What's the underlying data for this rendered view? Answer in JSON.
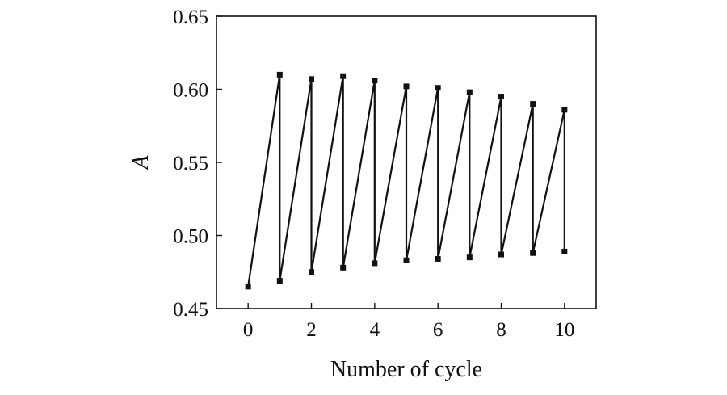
{
  "chart_data": {
    "type": "line",
    "title": "",
    "xlabel": "Number of cycle",
    "ylabel": "A",
    "xlim": [
      -1,
      11
    ],
    "ylim": [
      0.45,
      0.65
    ],
    "xticks": [
      0,
      2,
      4,
      6,
      8,
      10
    ],
    "xtick_labels": [
      "0",
      "2",
      "4",
      "6",
      "8",
      "10"
    ],
    "yticks": [
      0.45,
      0.5,
      0.55,
      0.6,
      0.65
    ],
    "ytick_labels": [
      "0.45",
      "0.50",
      "0.55",
      "0.60",
      "0.65"
    ],
    "grid": false,
    "legend": "none",
    "line_color": "#111111",
    "marker": "square",
    "series": [
      {
        "points": [
          [
            0,
            0.465
          ],
          [
            1,
            0.61
          ],
          [
            1,
            0.469
          ],
          [
            2,
            0.607
          ],
          [
            2,
            0.475
          ],
          [
            3,
            0.609
          ],
          [
            3,
            0.478
          ],
          [
            4,
            0.606
          ],
          [
            4,
            0.481
          ],
          [
            5,
            0.602
          ],
          [
            5,
            0.483
          ],
          [
            6,
            0.601
          ],
          [
            6,
            0.484
          ],
          [
            7,
            0.598
          ],
          [
            7,
            0.485
          ],
          [
            8,
            0.595
          ],
          [
            8,
            0.487
          ],
          [
            9,
            0.59
          ],
          [
            9,
            0.488
          ],
          [
            10,
            0.586
          ],
          [
            10,
            0.489
          ]
        ]
      }
    ]
  }
}
